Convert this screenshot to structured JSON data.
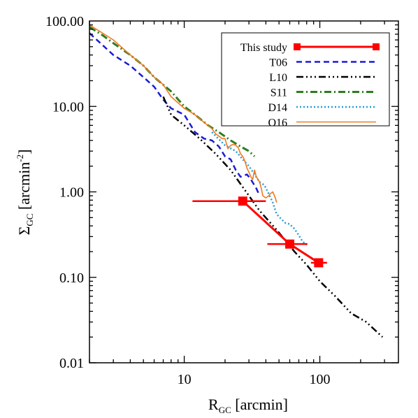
{
  "chart_data": {
    "type": "line",
    "xscale": "log",
    "yscale": "log",
    "xlim": [
      2,
      380
    ],
    "ylim": [
      0.01,
      100
    ],
    "xlabel": {
      "main": "R",
      "sub": "GC",
      "rest": " [arcmin]"
    },
    "ylabel": {
      "main": "Σ",
      "sub": "GC",
      "rest": " [arcmin",
      "sup": "-2",
      "end": "]"
    },
    "x_ticks": [
      {
        "value": 10,
        "label": "10"
      },
      {
        "value": 100,
        "label": "100"
      }
    ],
    "y_ticks": [
      {
        "value": 100,
        "label": "100.00"
      },
      {
        "value": 10,
        "label": "10.00"
      },
      {
        "value": 1,
        "label": "1.00"
      },
      {
        "value": 0.1,
        "label": "0.10"
      },
      {
        "value": 0.01,
        "label": "0.01"
      }
    ],
    "legend_position": "top-right",
    "series": [
      {
        "name": "This study",
        "color": "#ff0000",
        "dash": "",
        "width": 3,
        "markers": true,
        "points": [
          {
            "x": 27,
            "y": 0.78,
            "xerr": [
              11.5,
              40
            ]
          },
          {
            "x": 60,
            "y": 0.245,
            "xerr": [
              41,
              81
            ]
          },
          {
            "x": 98,
            "y": 0.148,
            "xerr": [
              86,
              113
            ]
          }
        ]
      },
      {
        "name": "T06",
        "color": "#1c1cd6",
        "dash": "8,5",
        "width": 2.5,
        "points": [
          [
            2,
            72
          ],
          [
            3,
            40
          ],
          [
            4,
            30
          ],
          [
            5,
            22
          ],
          [
            6,
            17
          ],
          [
            7,
            12
          ],
          [
            8,
            9.5
          ],
          [
            10,
            8
          ],
          [
            12,
            5
          ],
          [
            14,
            4.2
          ],
          [
            16,
            4
          ],
          [
            18,
            3.4
          ],
          [
            20,
            2.6
          ],
          [
            22,
            2.4
          ],
          [
            24,
            1.8
          ],
          [
            26,
            1.5
          ],
          [
            29,
            1.6
          ],
          [
            31,
            1.4
          ],
          [
            34,
            1.1
          ],
          [
            36,
            0.9
          ]
        ]
      },
      {
        "name": "L10",
        "color": "#000000",
        "dash": "10,4,2,4,2,4,2,4",
        "width": 2.5,
        "points": [
          [
            7,
            13
          ],
          [
            8,
            8
          ],
          [
            10,
            6
          ],
          [
            13,
            4.2
          ],
          [
            17,
            2.8
          ],
          [
            22,
            1.8
          ],
          [
            28,
            1.05
          ],
          [
            36,
            0.6
          ],
          [
            48,
            0.36
          ],
          [
            65,
            0.2
          ],
          [
            80,
            0.14
          ],
          [
            100,
            0.09
          ],
          [
            130,
            0.06
          ],
          [
            170,
            0.038
          ],
          [
            220,
            0.03
          ],
          [
            290,
            0.02
          ]
        ]
      },
      {
        "name": "S11",
        "color": "#2e7d1e",
        "dash": "10,4,2,4",
        "width": 3,
        "points": [
          [
            2,
            85
          ],
          [
            2.5,
            68
          ],
          [
            3,
            55
          ],
          [
            4,
            40
          ],
          [
            5,
            30
          ],
          [
            6,
            22
          ],
          [
            8,
            15
          ],
          [
            10,
            10
          ],
          [
            12,
            8
          ],
          [
            15,
            6
          ],
          [
            18,
            5
          ],
          [
            22,
            4
          ],
          [
            26,
            3.4
          ],
          [
            30,
            3
          ],
          [
            33,
            2.6
          ]
        ]
      },
      {
        "name": "D14",
        "color": "#2a9bd8",
        "dash": "2,3",
        "width": 2.5,
        "points": [
          [
            16,
            5
          ],
          [
            20,
            3.5
          ],
          [
            24,
            3
          ],
          [
            27,
            2.4
          ],
          [
            30,
            2
          ],
          [
            33,
            1.6
          ],
          [
            36,
            1.3
          ],
          [
            39,
            1.2
          ],
          [
            42,
            0.95
          ],
          [
            45,
            0.75
          ],
          [
            48,
            0.55
          ],
          [
            52,
            0.48
          ],
          [
            56,
            0.43
          ],
          [
            60,
            0.42
          ],
          [
            65,
            0.37
          ],
          [
            70,
            0.31
          ],
          [
            75,
            0.26
          ],
          [
            80,
            0.24
          ]
        ]
      },
      {
        "name": "O16",
        "color": "#f07a1e",
        "dash": "",
        "width": 1.6,
        "points": [
          [
            2,
            90
          ],
          [
            3,
            60
          ],
          [
            4,
            40
          ],
          [
            5,
            30
          ],
          [
            6,
            22
          ],
          [
            7,
            18
          ],
          [
            8,
            13
          ],
          [
            10,
            9.5
          ],
          [
            12,
            8
          ],
          [
            14,
            6.5
          ],
          [
            16,
            5.5
          ],
          [
            17,
            4.8
          ],
          [
            18,
            4.5
          ],
          [
            19,
            4.2
          ],
          [
            20,
            4.2
          ],
          [
            21,
            3.2
          ],
          [
            22,
            3.5
          ],
          [
            23,
            3.6
          ],
          [
            24,
            3.5
          ],
          [
            25,
            3.3
          ],
          [
            26,
            2.8
          ],
          [
            27,
            2.6
          ],
          [
            28,
            2.3
          ],
          [
            29,
            1.9
          ],
          [
            30,
            1.7
          ],
          [
            31,
            1.5
          ],
          [
            32,
            1.4
          ],
          [
            33,
            1.8
          ],
          [
            34,
            1.5
          ],
          [
            35,
            1.4
          ],
          [
            36,
            1.3
          ],
          [
            37,
            1.1
          ],
          [
            38,
            0.9
          ],
          [
            40,
            0.85
          ],
          [
            42,
            0.9
          ],
          [
            43,
            0.95
          ],
          [
            45,
            1.0
          ],
          [
            47,
            0.85
          ],
          [
            48,
            0.75
          ]
        ]
      }
    ]
  }
}
